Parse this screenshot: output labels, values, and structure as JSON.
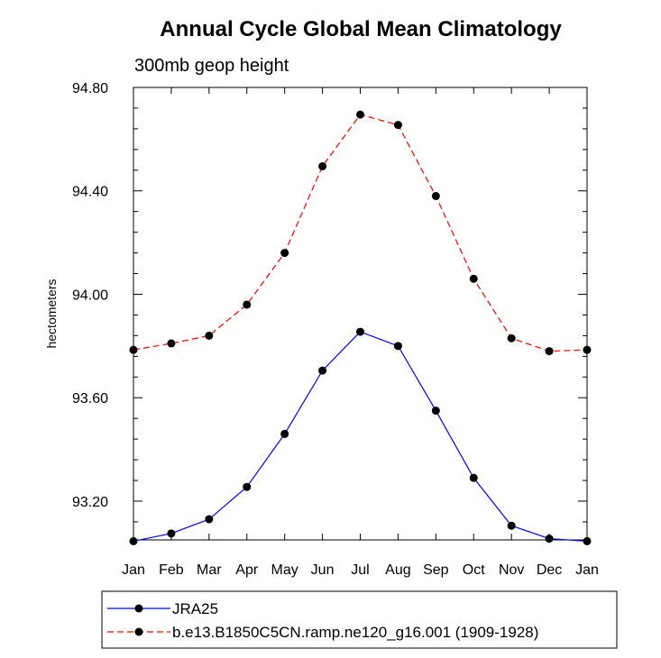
{
  "chart_data": {
    "type": "line",
    "title": "Annual Cycle Global Mean Climatology",
    "subtitle": "300mb geop height",
    "xlabel": "",
    "ylabel": "hectometers",
    "categories": [
      "Jan",
      "Feb",
      "Mar",
      "Apr",
      "May",
      "Jun",
      "Jul",
      "Aug",
      "Sep",
      "Oct",
      "Nov",
      "Dec",
      "Jan"
    ],
    "ylim": [
      93.05,
      94.8
    ],
    "yticks": [
      93.2,
      93.6,
      94.0,
      94.4,
      94.8
    ],
    "ytick_labels": [
      "93.20",
      "93.60",
      "94.00",
      "94.40",
      "94.80"
    ],
    "legend_position": "bottom",
    "grid": false,
    "series": [
      {
        "name": "JRA25",
        "color": "#0000ff",
        "dash": "solid",
        "values": [
          93.045,
          93.075,
          93.13,
          93.255,
          93.46,
          93.705,
          93.855,
          93.8,
          93.55,
          93.29,
          93.105,
          93.055,
          93.045
        ]
      },
      {
        "name": "b.e13.B1850C5CN.ramp.ne120_g16.001 (1909-1928)",
        "color": "#ff0000",
        "dash": "dashed",
        "values": [
          93.785,
          93.81,
          93.84,
          93.96,
          94.16,
          94.495,
          94.695,
          94.655,
          94.38,
          94.06,
          93.83,
          93.78,
          93.785
        ]
      }
    ]
  }
}
